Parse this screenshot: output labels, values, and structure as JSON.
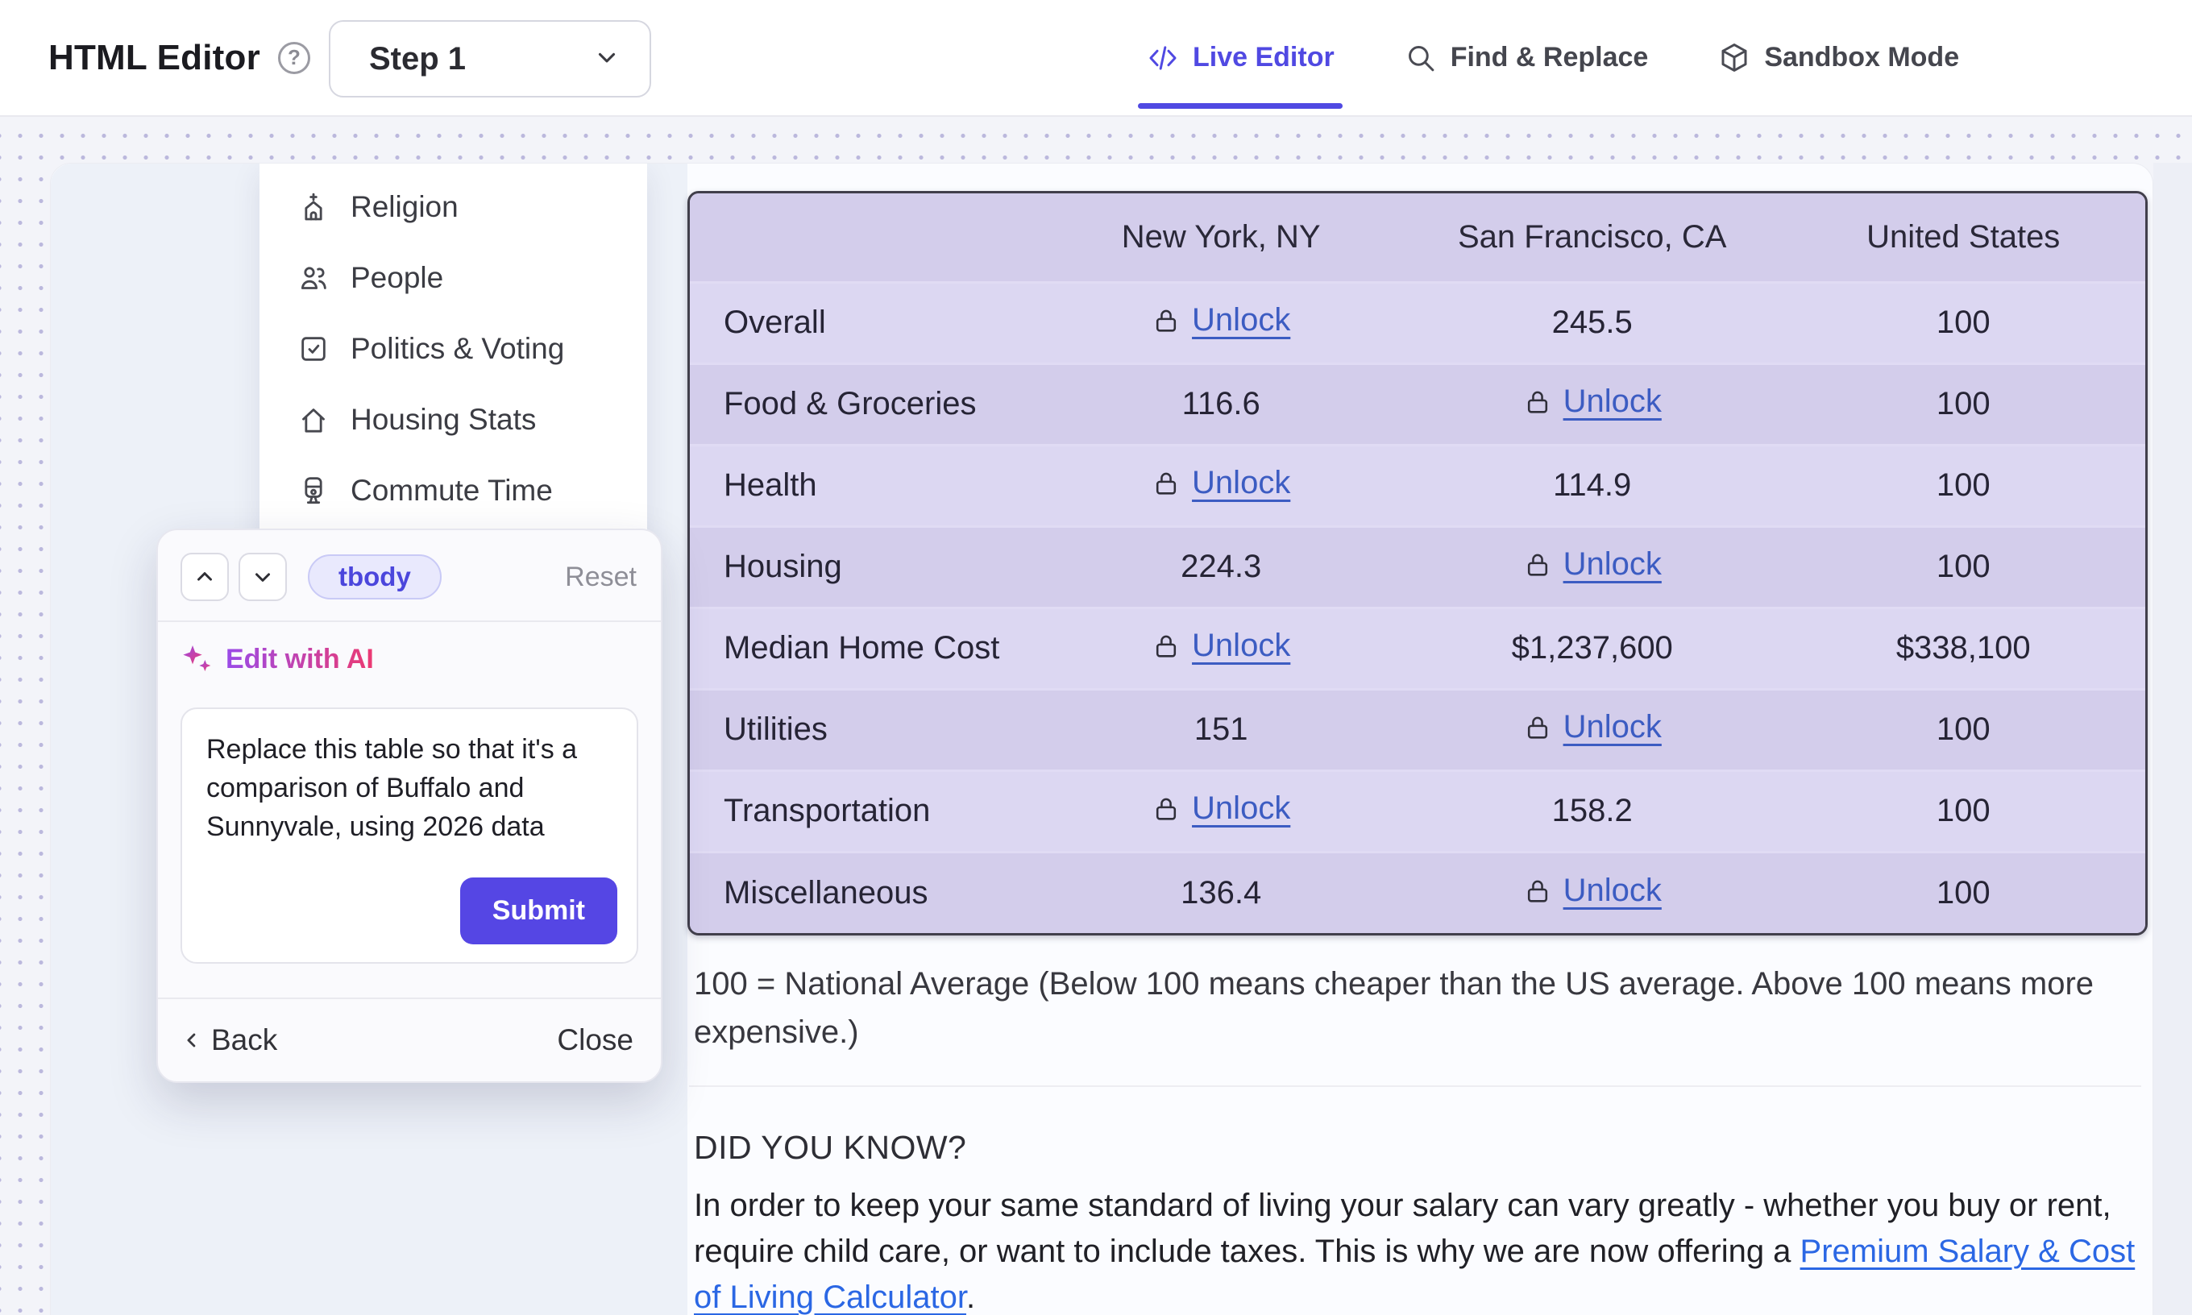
{
  "header": {
    "title": "HTML Editor",
    "step_selector": {
      "value": "Step 1"
    },
    "tabs": [
      {
        "label": "Live Editor",
        "icon": "code",
        "active": true
      },
      {
        "label": "Find & Replace",
        "icon": "search",
        "active": false
      },
      {
        "label": "Sandbox Mode",
        "icon": "cube",
        "active": false
      }
    ]
  },
  "sidebar": {
    "items": [
      {
        "label": "Religion",
        "icon": "church"
      },
      {
        "label": "People",
        "icon": "people"
      },
      {
        "label": "Politics & Voting",
        "icon": "ballot"
      },
      {
        "label": "Housing Stats",
        "icon": "house"
      },
      {
        "label": "Commute Time",
        "icon": "train"
      }
    ]
  },
  "inspector_panel": {
    "tag": "tbody",
    "reset_label": "Reset",
    "edit_with_ai_label": "Edit with AI",
    "prompt_value": "Replace this table so that it's a comparison of Buffalo and Sunnyvale, using 2026 data",
    "submit_label": "Submit",
    "back_label": "Back",
    "close_label": "Close"
  },
  "table": {
    "columns": [
      "",
      "New York, NY",
      "San Francisco, CA",
      "United States"
    ],
    "unlock_label": "Unlock",
    "rows": [
      {
        "label": "Overall",
        "cells": [
          {
            "locked": true
          },
          {
            "value": "245.5"
          },
          {
            "value": "100"
          }
        ]
      },
      {
        "label": "Food & Groceries",
        "cells": [
          {
            "value": "116.6"
          },
          {
            "locked": true
          },
          {
            "value": "100"
          }
        ]
      },
      {
        "label": "Health",
        "cells": [
          {
            "locked": true
          },
          {
            "value": "114.9"
          },
          {
            "value": "100"
          }
        ]
      },
      {
        "label": "Housing",
        "cells": [
          {
            "value": "224.3"
          },
          {
            "locked": true
          },
          {
            "value": "100"
          }
        ]
      },
      {
        "label": "Median Home Cost",
        "cells": [
          {
            "locked": true
          },
          {
            "value": "$1,237,600"
          },
          {
            "value": "$338,100"
          }
        ]
      },
      {
        "label": "Utilities",
        "cells": [
          {
            "value": "151"
          },
          {
            "locked": true
          },
          {
            "value": "100"
          }
        ]
      },
      {
        "label": "Transportation",
        "cells": [
          {
            "locked": true
          },
          {
            "value": "158.2"
          },
          {
            "value": "100"
          }
        ]
      },
      {
        "label": "Miscellaneous",
        "cells": [
          {
            "value": "136.4"
          },
          {
            "locked": true
          },
          {
            "value": "100"
          }
        ]
      }
    ]
  },
  "notes": {
    "footnote": "100 = National Average (Below 100 means cheaper than the US average. Above 100 means more expensive.)",
    "did_you_know_title": "DID YOU KNOW?",
    "did_you_know_text_before": "In order to keep your same standard of living your salary can vary greatly - whether you buy or rent, require child care, or want to include taxes. This is why we are now offering a ",
    "did_you_know_link": "Premium Salary & Cost of Living Calculator",
    "did_you_know_text_after": "."
  },
  "colors": {
    "accent": "#5049e2",
    "submit": "#5546e4",
    "unlock_link": "#3c5cc2",
    "text_link": "#2b67e4",
    "ai_grad_start": "#9a4be8",
    "ai_grad_end": "#ec3a72",
    "table_border": "#413f4b",
    "row_light": "#dcd7f2",
    "row_dark": "#d3cdeb",
    "header_row": "#d3cdeb"
  }
}
